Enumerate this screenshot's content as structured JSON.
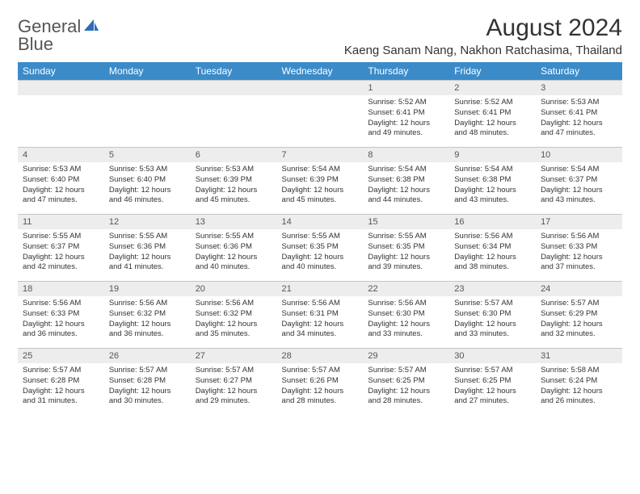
{
  "logo": {
    "word1": "General",
    "word2": "Blue"
  },
  "title": "August 2024",
  "location": "Kaeng Sanam Nang, Nakhon Ratchasima, Thailand",
  "colors": {
    "header_bg": "#3b8bc9",
    "header_text": "#ffffff",
    "daynum_bg": "#ededed",
    "border": "#c5c5c5",
    "logo_blue": "#2a6db5"
  },
  "day_names": [
    "Sunday",
    "Monday",
    "Tuesday",
    "Wednesday",
    "Thursday",
    "Friday",
    "Saturday"
  ],
  "weeks": [
    [
      null,
      null,
      null,
      null,
      {
        "n": "1",
        "sr": "5:52 AM",
        "ss": "6:41 PM",
        "dl": "12 hours and 49 minutes."
      },
      {
        "n": "2",
        "sr": "5:52 AM",
        "ss": "6:41 PM",
        "dl": "12 hours and 48 minutes."
      },
      {
        "n": "3",
        "sr": "5:53 AM",
        "ss": "6:41 PM",
        "dl": "12 hours and 47 minutes."
      }
    ],
    [
      {
        "n": "4",
        "sr": "5:53 AM",
        "ss": "6:40 PM",
        "dl": "12 hours and 47 minutes."
      },
      {
        "n": "5",
        "sr": "5:53 AM",
        "ss": "6:40 PM",
        "dl": "12 hours and 46 minutes."
      },
      {
        "n": "6",
        "sr": "5:53 AM",
        "ss": "6:39 PM",
        "dl": "12 hours and 45 minutes."
      },
      {
        "n": "7",
        "sr": "5:54 AM",
        "ss": "6:39 PM",
        "dl": "12 hours and 45 minutes."
      },
      {
        "n": "8",
        "sr": "5:54 AM",
        "ss": "6:38 PM",
        "dl": "12 hours and 44 minutes."
      },
      {
        "n": "9",
        "sr": "5:54 AM",
        "ss": "6:38 PM",
        "dl": "12 hours and 43 minutes."
      },
      {
        "n": "10",
        "sr": "5:54 AM",
        "ss": "6:37 PM",
        "dl": "12 hours and 43 minutes."
      }
    ],
    [
      {
        "n": "11",
        "sr": "5:55 AM",
        "ss": "6:37 PM",
        "dl": "12 hours and 42 minutes."
      },
      {
        "n": "12",
        "sr": "5:55 AM",
        "ss": "6:36 PM",
        "dl": "12 hours and 41 minutes."
      },
      {
        "n": "13",
        "sr": "5:55 AM",
        "ss": "6:36 PM",
        "dl": "12 hours and 40 minutes."
      },
      {
        "n": "14",
        "sr": "5:55 AM",
        "ss": "6:35 PM",
        "dl": "12 hours and 40 minutes."
      },
      {
        "n": "15",
        "sr": "5:55 AM",
        "ss": "6:35 PM",
        "dl": "12 hours and 39 minutes."
      },
      {
        "n": "16",
        "sr": "5:56 AM",
        "ss": "6:34 PM",
        "dl": "12 hours and 38 minutes."
      },
      {
        "n": "17",
        "sr": "5:56 AM",
        "ss": "6:33 PM",
        "dl": "12 hours and 37 minutes."
      }
    ],
    [
      {
        "n": "18",
        "sr": "5:56 AM",
        "ss": "6:33 PM",
        "dl": "12 hours and 36 minutes."
      },
      {
        "n": "19",
        "sr": "5:56 AM",
        "ss": "6:32 PM",
        "dl": "12 hours and 36 minutes."
      },
      {
        "n": "20",
        "sr": "5:56 AM",
        "ss": "6:32 PM",
        "dl": "12 hours and 35 minutes."
      },
      {
        "n": "21",
        "sr": "5:56 AM",
        "ss": "6:31 PM",
        "dl": "12 hours and 34 minutes."
      },
      {
        "n": "22",
        "sr": "5:56 AM",
        "ss": "6:30 PM",
        "dl": "12 hours and 33 minutes."
      },
      {
        "n": "23",
        "sr": "5:57 AM",
        "ss": "6:30 PM",
        "dl": "12 hours and 33 minutes."
      },
      {
        "n": "24",
        "sr": "5:57 AM",
        "ss": "6:29 PM",
        "dl": "12 hours and 32 minutes."
      }
    ],
    [
      {
        "n": "25",
        "sr": "5:57 AM",
        "ss": "6:28 PM",
        "dl": "12 hours and 31 minutes."
      },
      {
        "n": "26",
        "sr": "5:57 AM",
        "ss": "6:28 PM",
        "dl": "12 hours and 30 minutes."
      },
      {
        "n": "27",
        "sr": "5:57 AM",
        "ss": "6:27 PM",
        "dl": "12 hours and 29 minutes."
      },
      {
        "n": "28",
        "sr": "5:57 AM",
        "ss": "6:26 PM",
        "dl": "12 hours and 28 minutes."
      },
      {
        "n": "29",
        "sr": "5:57 AM",
        "ss": "6:25 PM",
        "dl": "12 hours and 28 minutes."
      },
      {
        "n": "30",
        "sr": "5:57 AM",
        "ss": "6:25 PM",
        "dl": "12 hours and 27 minutes."
      },
      {
        "n": "31",
        "sr": "5:58 AM",
        "ss": "6:24 PM",
        "dl": "12 hours and 26 minutes."
      }
    ]
  ],
  "labels": {
    "sunrise": "Sunrise:",
    "sunset": "Sunset:",
    "daylight": "Daylight:"
  }
}
